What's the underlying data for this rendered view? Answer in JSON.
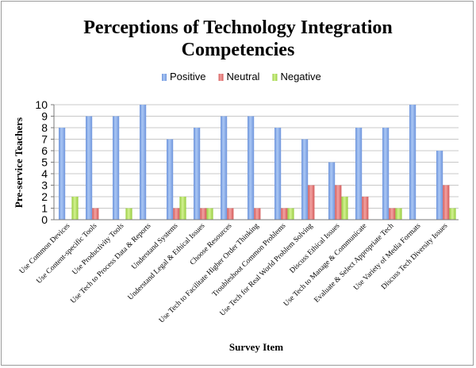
{
  "chart_data": {
    "type": "bar",
    "title_lines": [
      "Perceptions of Technology Integration",
      "Competencies"
    ],
    "xlabel": "Survey Item",
    "ylabel": "Pre-service Teachers",
    "ylim": [
      0,
      10
    ],
    "yticks": [
      "0",
      "1",
      "2",
      "3",
      "4",
      "5",
      "6",
      "7",
      "8",
      "9",
      "10"
    ],
    "grid": true,
    "legend_position": "top",
    "categories": [
      "Use Common Devices",
      "Use Content-specific Tools",
      "Use Productivity Tools",
      "Use Tech to Process Data & Reports",
      "Understand Systems",
      "Understand Legal & Ethical Issues",
      "Choose Resources",
      "Use Tech to Facilitate Higher Order Thinking",
      "Troubleshoot Common Problems",
      "Use Tech for Real World Problem Solving",
      "Discuss Ethical Issues",
      "Use Tech to Manage & Communicate",
      "Evaluate & Select Appropriate Tech",
      "Use Variety of Media Formats",
      "Discuss Tech Diversity Issues"
    ],
    "series": [
      {
        "name": "Positive",
        "color": "#8fb1ea",
        "values": [
          8,
          9,
          9,
          10,
          7,
          8,
          9,
          9,
          8,
          7,
          5,
          8,
          8,
          10,
          6
        ]
      },
      {
        "name": "Neutral",
        "color": "#e97a79",
        "values": [
          0,
          1,
          0,
          0,
          1,
          1,
          1,
          1,
          1,
          3,
          3,
          2,
          1,
          0,
          3
        ]
      },
      {
        "name": "Negative",
        "color": "#b5e461",
        "values": [
          2,
          0,
          1,
          0,
          2,
          1,
          0,
          0,
          1,
          0,
          2,
          0,
          1,
          0,
          1
        ]
      }
    ]
  }
}
